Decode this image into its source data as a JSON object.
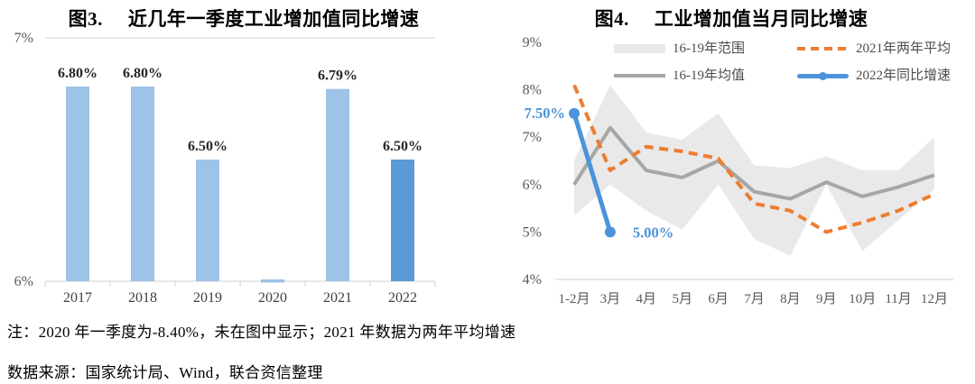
{
  "notes": {
    "line1": "注：2020 年一季度为-8.40%，未在图中显示；2021 年数据为两年平均增速",
    "line2": "数据来源：国家统计局、Wind，联合资信整理"
  },
  "colors": {
    "light_blue_bar": "#9DC3E6",
    "dark_blue_bar": "#5B9BD5",
    "accent_blue": "#4B93DB",
    "orange": "#ED7D31",
    "gray_line": "#A6A6A6",
    "band_gray": "#E9E9E9",
    "axis_line": "#D9D9D9",
    "tick_text": "#595959",
    "label_text": "#404040",
    "value_label_text": "#262626"
  },
  "chart_data": [
    {
      "type": "bar",
      "title_prefix": "图3.",
      "title": "近几年一季度工业增加值同比增速",
      "categories": [
        "2017",
        "2018",
        "2019",
        "2020",
        "2021",
        "2022"
      ],
      "values": [
        6.8,
        6.8,
        6.5,
        -8.4,
        6.79,
        6.5
      ],
      "value_labels": [
        "6.80%",
        "6.80%",
        "6.50%",
        "",
        "6.79%",
        "6.50%"
      ],
      "bar_colors": [
        "#9DC3E6",
        "#9DC3E6",
        "#9DC3E6",
        "#9DC3E6",
        "#9DC3E6",
        "#5B9BD5"
      ],
      "ylim": [
        6,
        7
      ],
      "y_ticks": [
        {
          "value": 7,
          "label": "7%"
        },
        {
          "value": 6,
          "label": "6%"
        }
      ],
      "grid": "top-line-only",
      "note": "2020 value -8.40% clipped below axis (shown as sliver)"
    },
    {
      "type": "line",
      "title_prefix": "图4.",
      "title": "工业增加值当月同比增速",
      "x": [
        "1-2月",
        "3月",
        "4月",
        "5月",
        "6月",
        "7月",
        "8月",
        "9月",
        "10月",
        "11月",
        "12月"
      ],
      "ylim": [
        4,
        9
      ],
      "y_ticks": [
        {
          "value": 9,
          "label": "9%"
        },
        {
          "value": 8,
          "label": "8%"
        },
        {
          "value": 7,
          "label": "7%"
        },
        {
          "value": 6,
          "label": "6%"
        },
        {
          "value": 5,
          "label": "5%"
        },
        {
          "value": 4,
          "label": "4%"
        }
      ],
      "legend_position": "top",
      "grid": "off",
      "series": [
        {
          "name": "16-19年范围",
          "style": "band",
          "color": "#E9E9E9",
          "min": [
            5.35,
            6.0,
            5.45,
            5.05,
            6.0,
            4.85,
            4.5,
            6.0,
            4.6,
            5.25,
            5.9
          ],
          "max": [
            6.5,
            8.1,
            7.1,
            6.95,
            7.5,
            6.4,
            6.35,
            6.6,
            6.3,
            6.3,
            7.0
          ]
        },
        {
          "name": "16-19年均值",
          "style": "solid",
          "color": "#A6A6A6",
          "values": [
            6.0,
            7.2,
            6.3,
            6.15,
            6.5,
            5.85,
            5.7,
            6.05,
            5.75,
            5.95,
            6.2
          ]
        },
        {
          "name": "2021年两年平均",
          "style": "dashed",
          "color": "#ED7D31",
          "values": [
            8.1,
            6.3,
            6.8,
            6.7,
            6.55,
            5.6,
            5.45,
            5.0,
            5.2,
            5.45,
            5.8
          ]
        },
        {
          "name": "2022年同比增速",
          "style": "solid-marker",
          "color": "#4B93DB",
          "values": [
            7.5,
            5.0,
            null,
            null,
            null,
            null,
            null,
            null,
            null,
            null,
            null
          ],
          "point_labels": [
            "7.50%",
            "5.00%"
          ]
        }
      ]
    }
  ]
}
